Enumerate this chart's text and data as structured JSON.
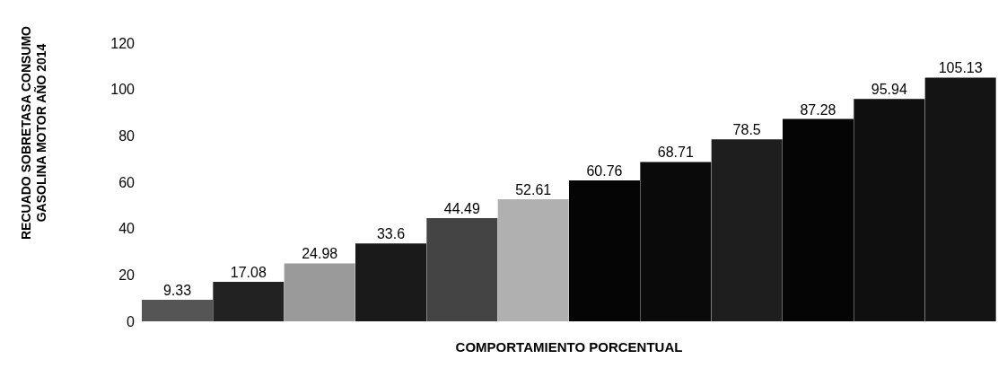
{
  "chart_data": {
    "type": "bar",
    "xlabel": "COMPORTAMIENTO PORCENTUAL",
    "ylabel": "RECUADO SOBRETASA CONSUMO GASOLINA MOTOR AÑO 2014",
    "categories": [
      null,
      null,
      null,
      null,
      null,
      null,
      null,
      null,
      null,
      null,
      null,
      null
    ],
    "values": [
      9.33,
      17.08,
      24.98,
      33.6,
      44.49,
      52.61,
      60.76,
      68.71,
      78.5,
      87.28,
      95.94,
      105.13
    ],
    "colors": [
      "#555555",
      "#222222",
      "#9a9a9a",
      "#1a1a1a",
      "#444444",
      "#b0b0b0",
      "#050505",
      "#0a0a0a",
      "#1e1e1e",
      "#050505",
      "#0f0f0f",
      "#141414"
    ],
    "ylim": [
      0,
      120
    ],
    "yticks": [
      0,
      20,
      40,
      60,
      80,
      100,
      120
    ],
    "grid": false,
    "data_labels": true
  }
}
